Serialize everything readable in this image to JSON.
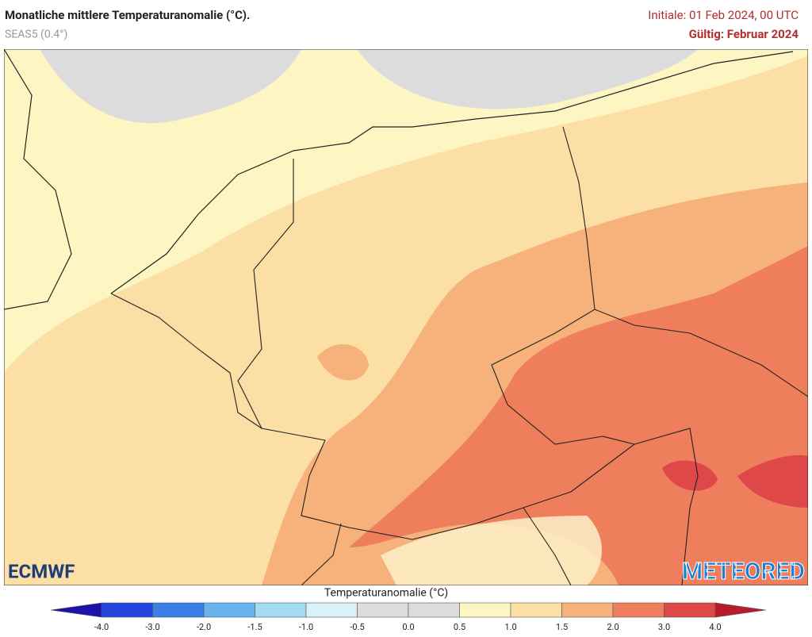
{
  "header": {
    "title": "Monatliche mittlere Temperaturanomalie (°C).",
    "subtitle": "SEAS5 (0.4°)",
    "initial": "Initiale: 01 Feb 2024, 00 UTC",
    "valid": "Gültig: Februar 2024"
  },
  "logos": {
    "left": "ECMWF",
    "right": "METEORED"
  },
  "legend": {
    "title": "Temperaturanomalie (°C)",
    "ticks": [
      "-4.0",
      "-3.0",
      "-2.0",
      "-1.5",
      "-1.0",
      "-0.5",
      "0.0",
      "0.5",
      "1.0",
      "1.5",
      "2.0",
      "3.0",
      "4.0"
    ],
    "colors": [
      "#1c14a8",
      "#2445dc",
      "#3a7fe6",
      "#66b3ee",
      "#a4dbf4",
      "#d9f1f8",
      "#dcdcdc",
      "#dcdcdc",
      "#fdf6c2",
      "#fcdfa4",
      "#f6b27a",
      "#ee7e5c",
      "#de4848",
      "#b81c2a"
    ]
  }
}
